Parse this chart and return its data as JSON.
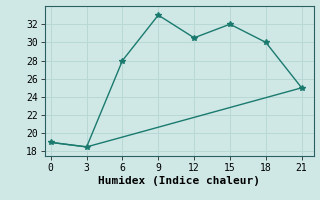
{
  "line1_x": [
    0,
    3,
    6,
    9,
    12,
    15,
    18,
    21
  ],
  "line1_y": [
    19,
    18.5,
    28,
    33,
    30.5,
    32,
    30,
    25
  ],
  "line2_x": [
    0,
    3,
    21
  ],
  "line2_y": [
    19,
    18.5,
    25
  ],
  "color": "#1a7a6e",
  "bg_color": "#cfe8e6",
  "grid_color": "#b8d8d6",
  "xlabel": "Humidex (Indice chaleur)",
  "xlim": [
    -0.5,
    22
  ],
  "ylim": [
    17.5,
    34
  ],
  "xticks": [
    0,
    3,
    6,
    9,
    12,
    15,
    18,
    21
  ],
  "yticks": [
    18,
    20,
    22,
    24,
    26,
    28,
    30,
    32
  ],
  "marker": "*",
  "markersize": 4,
  "linewidth": 1.0,
  "tick_fontsize": 7,
  "xlabel_fontsize": 8
}
